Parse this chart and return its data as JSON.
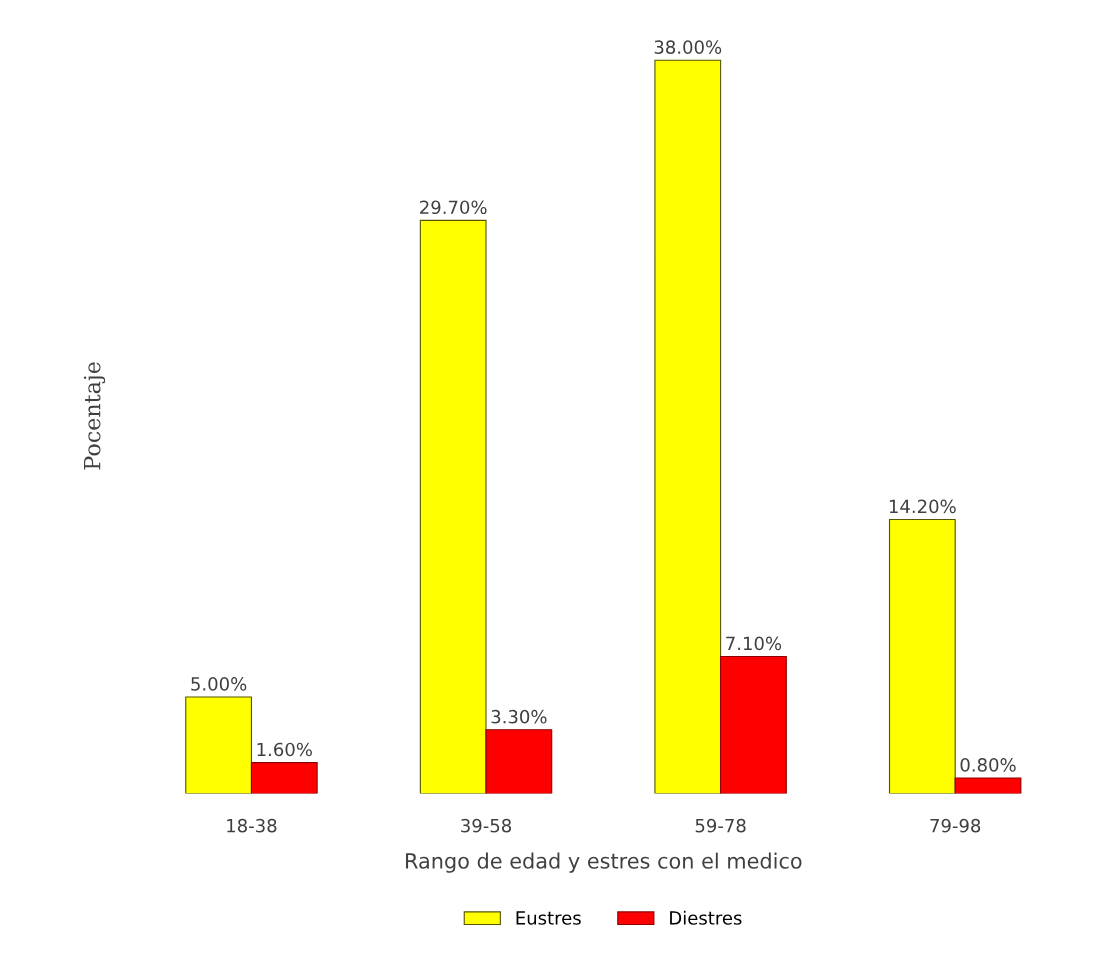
{
  "chart_data": {
    "type": "bar",
    "xlabel": "Rango de edad y estres con el medico",
    "ylabel": "Pocentaje",
    "categories": [
      "18-38",
      "39-58",
      "59-78",
      "79-98"
    ],
    "series": [
      {
        "name": "Eustres",
        "color": "#ffff00",
        "values": [
          5.0,
          29.7,
          38.0,
          14.2
        ],
        "value_labels": [
          "5.00%",
          "29.70%",
          "38.00%",
          "14.20%"
        ]
      },
      {
        "name": "Diestres",
        "color": "#ff0000",
        "values": [
          1.6,
          3.3,
          7.1,
          0.8
        ],
        "value_labels": [
          "1.60%",
          "3.30%",
          "7.10%",
          "0.80%"
        ]
      }
    ],
    "legend": "bottom",
    "grid": false
  }
}
